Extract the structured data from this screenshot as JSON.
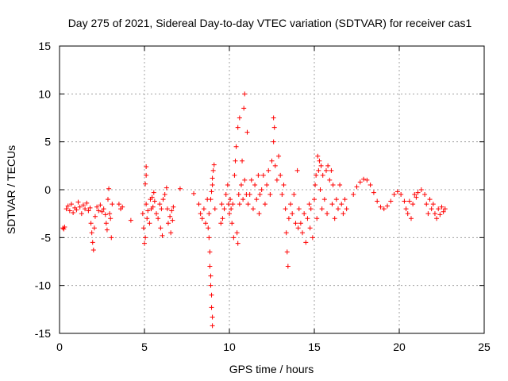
{
  "colors": {
    "series": "#ff0000",
    "grid": "#a0a0a0",
    "axis": "#000000",
    "background": "#ffffff"
  },
  "chart_data": {
    "type": "scatter",
    "title": "Day 275 of 2021, Sidereal Day-to-day VTEC variation (SDTVAR) for receiver cas1",
    "xlabel": "GPS time / hours",
    "ylabel": "SDTVAR / TECUs",
    "xlim": [
      0,
      25
    ],
    "ylim": [
      -15,
      15
    ],
    "xticks": [
      0,
      5,
      10,
      15,
      20,
      25
    ],
    "yticks": [
      -15,
      -10,
      -5,
      0,
      5,
      10,
      15
    ],
    "grid": true,
    "marker": "plus",
    "series": [
      {
        "name": "SDTVAR cas1",
        "points": [
          [
            0.2,
            -4.0
          ],
          [
            0.25,
            -4.1
          ],
          [
            0.3,
            -3.9
          ],
          [
            0.4,
            -2.0
          ],
          [
            0.5,
            -1.7
          ],
          [
            0.6,
            -2.2
          ],
          [
            0.7,
            -1.5
          ],
          [
            0.8,
            -2.4
          ],
          [
            0.9,
            -1.9
          ],
          [
            1.0,
            -2.1
          ],
          [
            1.1,
            -1.3
          ],
          [
            1.2,
            -1.8
          ],
          [
            1.3,
            -2.5
          ],
          [
            1.4,
            -1.6
          ],
          [
            1.5,
            -2.0
          ],
          [
            1.6,
            -1.4
          ],
          [
            1.7,
            -2.2
          ],
          [
            1.8,
            -1.9
          ],
          [
            1.85,
            -3.5
          ],
          [
            1.9,
            -4.5
          ],
          [
            1.95,
            -5.5
          ],
          [
            2.0,
            -6.3
          ],
          [
            2.05,
            -4.0
          ],
          [
            2.1,
            -2.8
          ],
          [
            2.2,
            -1.8
          ],
          [
            2.3,
            -2.2
          ],
          [
            2.4,
            -1.6
          ],
          [
            2.5,
            -2.3
          ],
          [
            2.6,
            -2.0
          ],
          [
            2.7,
            -2.6
          ],
          [
            2.75,
            -3.5
          ],
          [
            2.8,
            -4.2
          ],
          [
            2.85,
            -1.0
          ],
          [
            2.9,
            0.1
          ],
          [
            2.95,
            -2.5
          ],
          [
            3.0,
            -3.0
          ],
          [
            3.05,
            -5.0
          ],
          [
            3.1,
            -1.5
          ],
          [
            3.5,
            -1.5
          ],
          [
            3.6,
            -2.0
          ],
          [
            3.7,
            -1.8
          ],
          [
            4.2,
            -3.2
          ],
          [
            4.9,
            -2.5
          ],
          [
            4.95,
            -4.0
          ],
          [
            5.0,
            -5.6
          ],
          [
            5.05,
            -5.0
          ],
          [
            5.1,
            -1.5
          ],
          [
            5.05,
            0.6
          ],
          [
            5.1,
            1.5
          ],
          [
            5.1,
            2.4
          ],
          [
            5.15,
            -3.0
          ],
          [
            5.2,
            -2.2
          ],
          [
            5.3,
            -3.5
          ],
          [
            5.35,
            -1.0
          ],
          [
            5.4,
            -2.0
          ],
          [
            5.45,
            -0.8
          ],
          [
            5.5,
            -1.8
          ],
          [
            5.55,
            -0.3
          ],
          [
            5.6,
            -1.2
          ],
          [
            5.7,
            -2.5
          ],
          [
            5.8,
            -3.0
          ],
          [
            5.9,
            -1.5
          ],
          [
            5.95,
            -4.0
          ],
          [
            6.0,
            -2.0
          ],
          [
            6.05,
            -4.8
          ],
          [
            6.1,
            -1.0
          ],
          [
            6.2,
            -0.5
          ],
          [
            6.3,
            0.2
          ],
          [
            6.35,
            -2.0
          ],
          [
            6.4,
            -3.5
          ],
          [
            6.5,
            -2.8
          ],
          [
            6.55,
            -4.5
          ],
          [
            6.6,
            -2.2
          ],
          [
            6.65,
            -3.2
          ],
          [
            6.7,
            -1.8
          ],
          [
            7.1,
            0.1
          ],
          [
            7.9,
            -0.4
          ],
          [
            8.2,
            -1.5
          ],
          [
            8.3,
            -2.5
          ],
          [
            8.4,
            -3.0
          ],
          [
            8.5,
            -2.0
          ],
          [
            8.6,
            -3.5
          ],
          [
            8.7,
            -1.0
          ],
          [
            8.75,
            -4.0
          ],
          [
            8.8,
            -2.5
          ],
          [
            8.8,
            -5.0
          ],
          [
            8.85,
            -6.5
          ],
          [
            8.85,
            -8.0
          ],
          [
            8.9,
            -9.0
          ],
          [
            8.9,
            -10.0
          ],
          [
            8.95,
            -11.0
          ],
          [
            8.95,
            -12.3
          ],
          [
            9.0,
            -13.3
          ],
          [
            9.0,
            -14.2
          ],
          [
            8.9,
            -1.0
          ],
          [
            8.95,
            -0.2
          ],
          [
            9.0,
            0.5
          ],
          [
            9.0,
            1.2
          ],
          [
            9.05,
            2.0
          ],
          [
            9.1,
            2.6
          ],
          [
            9.15,
            -2.0
          ],
          [
            9.5,
            -3.5
          ],
          [
            9.55,
            -1.5
          ],
          [
            9.6,
            -3.0
          ],
          [
            9.7,
            -2.0
          ],
          [
            9.8,
            -0.5
          ],
          [
            9.9,
            0.5
          ],
          [
            9.95,
            -1.5
          ],
          [
            10.0,
            -2.5
          ],
          [
            10.05,
            -1.0
          ],
          [
            10.1,
            -2.0
          ],
          [
            10.15,
            -3.5
          ],
          [
            10.2,
            -1.5
          ],
          [
            10.25,
            -5.0
          ],
          [
            10.3,
            1.5
          ],
          [
            10.35,
            3.0
          ],
          [
            10.4,
            4.5
          ],
          [
            10.45,
            -4.5
          ],
          [
            10.5,
            -5.6
          ],
          [
            10.5,
            6.5
          ],
          [
            10.55,
            -0.5
          ],
          [
            10.6,
            -1.5
          ],
          [
            10.6,
            7.5
          ],
          [
            10.7,
            0.5
          ],
          [
            10.75,
            3.0
          ],
          [
            10.8,
            -1.0
          ],
          [
            10.85,
            8.5
          ],
          [
            10.9,
            10.0
          ],
          [
            10.9,
            1.0
          ],
          [
            11.0,
            -0.5
          ],
          [
            11.05,
            6.0
          ],
          [
            11.1,
            -1.5
          ],
          [
            11.2,
            -0.5
          ],
          [
            11.3,
            1.0
          ],
          [
            11.4,
            -2.0
          ],
          [
            11.5,
            0.5
          ],
          [
            11.6,
            -1.0
          ],
          [
            11.7,
            1.5
          ],
          [
            11.75,
            -2.5
          ],
          [
            11.8,
            -0.5
          ],
          [
            11.9,
            0.0
          ],
          [
            12.0,
            1.5
          ],
          [
            12.1,
            -1.5
          ],
          [
            12.2,
            0.5
          ],
          [
            12.3,
            2.0
          ],
          [
            12.4,
            -0.5
          ],
          [
            12.5,
            3.0
          ],
          [
            12.6,
            5.0
          ],
          [
            12.6,
            7.5
          ],
          [
            12.65,
            6.5
          ],
          [
            12.7,
            2.5
          ],
          [
            12.8,
            1.0
          ],
          [
            12.9,
            3.5
          ],
          [
            13.0,
            1.5
          ],
          [
            13.1,
            -0.5
          ],
          [
            13.2,
            0.5
          ],
          [
            13.3,
            -2.0
          ],
          [
            13.35,
            -4.5
          ],
          [
            13.4,
            -6.5
          ],
          [
            13.45,
            -8.0
          ],
          [
            13.5,
            -3.0
          ],
          [
            13.6,
            -1.5
          ],
          [
            13.7,
            -2.5
          ],
          [
            13.8,
            -0.5
          ],
          [
            13.9,
            -3.5
          ],
          [
            14.0,
            2.0
          ],
          [
            14.05,
            -4.0
          ],
          [
            14.1,
            -2.0
          ],
          [
            14.2,
            -3.5
          ],
          [
            14.3,
            -4.5
          ],
          [
            14.4,
            -2.5
          ],
          [
            14.5,
            -5.5
          ],
          [
            14.6,
            -3.0
          ],
          [
            14.7,
            -1.5
          ],
          [
            14.75,
            -4.0
          ],
          [
            14.8,
            -2.0
          ],
          [
            14.9,
            -5.0
          ],
          [
            15.0,
            -1.0
          ],
          [
            15.05,
            0.5
          ],
          [
            15.1,
            1.5
          ],
          [
            15.15,
            -3.0
          ],
          [
            15.2,
            3.5
          ],
          [
            15.25,
            2.0
          ],
          [
            15.3,
            3.0
          ],
          [
            15.35,
            0.0
          ],
          [
            15.4,
            2.5
          ],
          [
            15.45,
            -2.0
          ],
          [
            15.5,
            1.5
          ],
          [
            15.6,
            -1.0
          ],
          [
            15.7,
            2.0
          ],
          [
            15.75,
            -2.5
          ],
          [
            15.8,
            2.5
          ],
          [
            15.9,
            1.0
          ],
          [
            16.0,
            2.0
          ],
          [
            16.05,
            -1.5
          ],
          [
            16.1,
            0.5
          ],
          [
            16.2,
            -3.0
          ],
          [
            16.3,
            -1.0
          ],
          [
            16.4,
            -2.0
          ],
          [
            16.5,
            0.5
          ],
          [
            16.6,
            -1.5
          ],
          [
            16.7,
            -2.5
          ],
          [
            16.8,
            -1.0
          ],
          [
            16.9,
            -2.0
          ],
          [
            17.3,
            -0.5
          ],
          [
            17.5,
            0.3
          ],
          [
            17.7,
            0.8
          ],
          [
            17.9,
            1.1
          ],
          [
            18.1,
            1.0
          ],
          [
            18.3,
            0.5
          ],
          [
            18.5,
            -0.3
          ],
          [
            18.7,
            -1.2
          ],
          [
            18.9,
            -1.8
          ],
          [
            19.1,
            -2.0
          ],
          [
            19.3,
            -1.7
          ],
          [
            19.5,
            -1.2
          ],
          [
            19.7,
            -0.5
          ],
          [
            19.9,
            -0.2
          ],
          [
            20.1,
            -0.5
          ],
          [
            20.3,
            -1.2
          ],
          [
            20.4,
            -2.0
          ],
          [
            20.5,
            -2.5
          ],
          [
            20.6,
            -1.2
          ],
          [
            20.7,
            -3.0
          ],
          [
            20.8,
            -1.5
          ],
          [
            20.9,
            -0.5
          ],
          [
            21.0,
            -0.8
          ],
          [
            21.1,
            -0.3
          ],
          [
            21.3,
            0.0
          ],
          [
            21.5,
            -0.5
          ],
          [
            21.6,
            -1.5
          ],
          [
            21.7,
            -2.5
          ],
          [
            21.8,
            -1.0
          ],
          [
            21.9,
            -2.0
          ],
          [
            22.0,
            -1.5
          ],
          [
            22.1,
            -2.5
          ],
          [
            22.2,
            -3.0
          ],
          [
            22.3,
            -2.0
          ],
          [
            22.4,
            -2.6
          ],
          [
            22.5,
            -1.8
          ],
          [
            22.6,
            -2.3
          ],
          [
            22.7,
            -2.0
          ]
        ]
      }
    ]
  }
}
